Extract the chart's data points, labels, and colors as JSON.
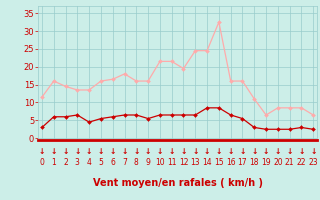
{
  "hours": [
    0,
    1,
    2,
    3,
    4,
    5,
    6,
    7,
    8,
    9,
    10,
    11,
    12,
    13,
    14,
    15,
    16,
    17,
    18,
    19,
    20,
    21,
    22,
    23
  ],
  "wind_avg": [
    3,
    6,
    6,
    6.5,
    4.5,
    5.5,
    6,
    6.5,
    6.5,
    5.5,
    6.5,
    6.5,
    6.5,
    6.5,
    8.5,
    8.5,
    6.5,
    5.5,
    3,
    2.5,
    2.5,
    2.5,
    3,
    2.5
  ],
  "wind_gust": [
    11.5,
    16,
    14.5,
    13.5,
    13.5,
    16,
    16.5,
    18,
    16,
    16,
    21.5,
    21.5,
    19.5,
    24.5,
    24.5,
    32.5,
    16,
    16,
    11,
    6.5,
    8.5,
    8.5,
    8.5,
    6.5
  ],
  "avg_color": "#cc0000",
  "gust_color": "#ffaaaa",
  "bg_color": "#cceee8",
  "grid_color": "#99cccc",
  "xlabel": "Vent moyen/en rafales ( km/h )",
  "xlabel_color": "#cc0000",
  "ytick_labels": [
    "0",
    "5",
    "10",
    "15",
    "20",
    "25",
    "30",
    "35"
  ],
  "ytick_vals": [
    0,
    5,
    10,
    15,
    20,
    25,
    30,
    35
  ],
  "ylim": [
    -0.5,
    37
  ],
  "xlim": [
    -0.3,
    23.3
  ],
  "tick_color": "#cc0000",
  "arrow_color": "#cc0000",
  "tick_fontsize": 6,
  "xlabel_fontsize": 7
}
